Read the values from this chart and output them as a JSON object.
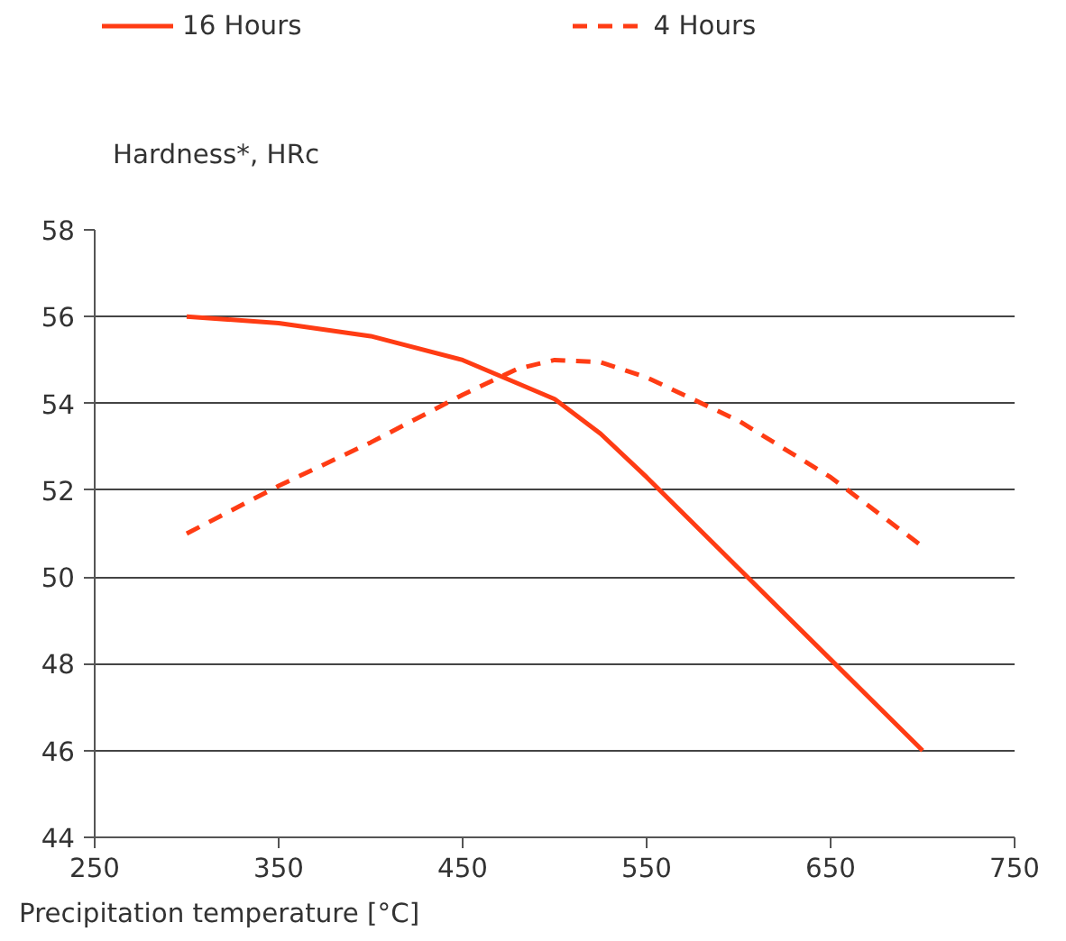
{
  "chart_data": {
    "type": "line",
    "xlabel": "Precipitation temperature [°C]",
    "ylabel": "Hardness*, HRc",
    "xlim": [
      250,
      750
    ],
    "xticks": [
      250,
      350,
      450,
      550,
      650,
      750
    ],
    "ylim": [
      44,
      58
    ],
    "yticks": [
      44,
      46,
      48,
      50,
      52,
      54,
      56,
      58
    ],
    "grid": "y",
    "legend": "top",
    "marker": "none",
    "series": [
      {
        "name": "16 Hours",
        "color": "#ff3c14",
        "line_style": "solid",
        "x": [
          300,
          350,
          400,
          450,
          500,
          525,
          550,
          600,
          650,
          700
        ],
        "values": [
          56,
          55.85,
          55.55,
          55.0,
          54.1,
          53.3,
          52.3,
          50.2,
          48.1,
          46
        ]
      },
      {
        "name": "4 Hours",
        "color": "#ff3c14",
        "line_style": "dashed",
        "x": [
          300,
          350,
          400,
          450,
          480,
          500,
          525,
          550,
          600,
          650,
          700
        ],
        "values": [
          51,
          52.1,
          53.1,
          54.2,
          54.8,
          55.0,
          54.95,
          54.6,
          53.6,
          52.3,
          50.7
        ]
      }
    ]
  }
}
